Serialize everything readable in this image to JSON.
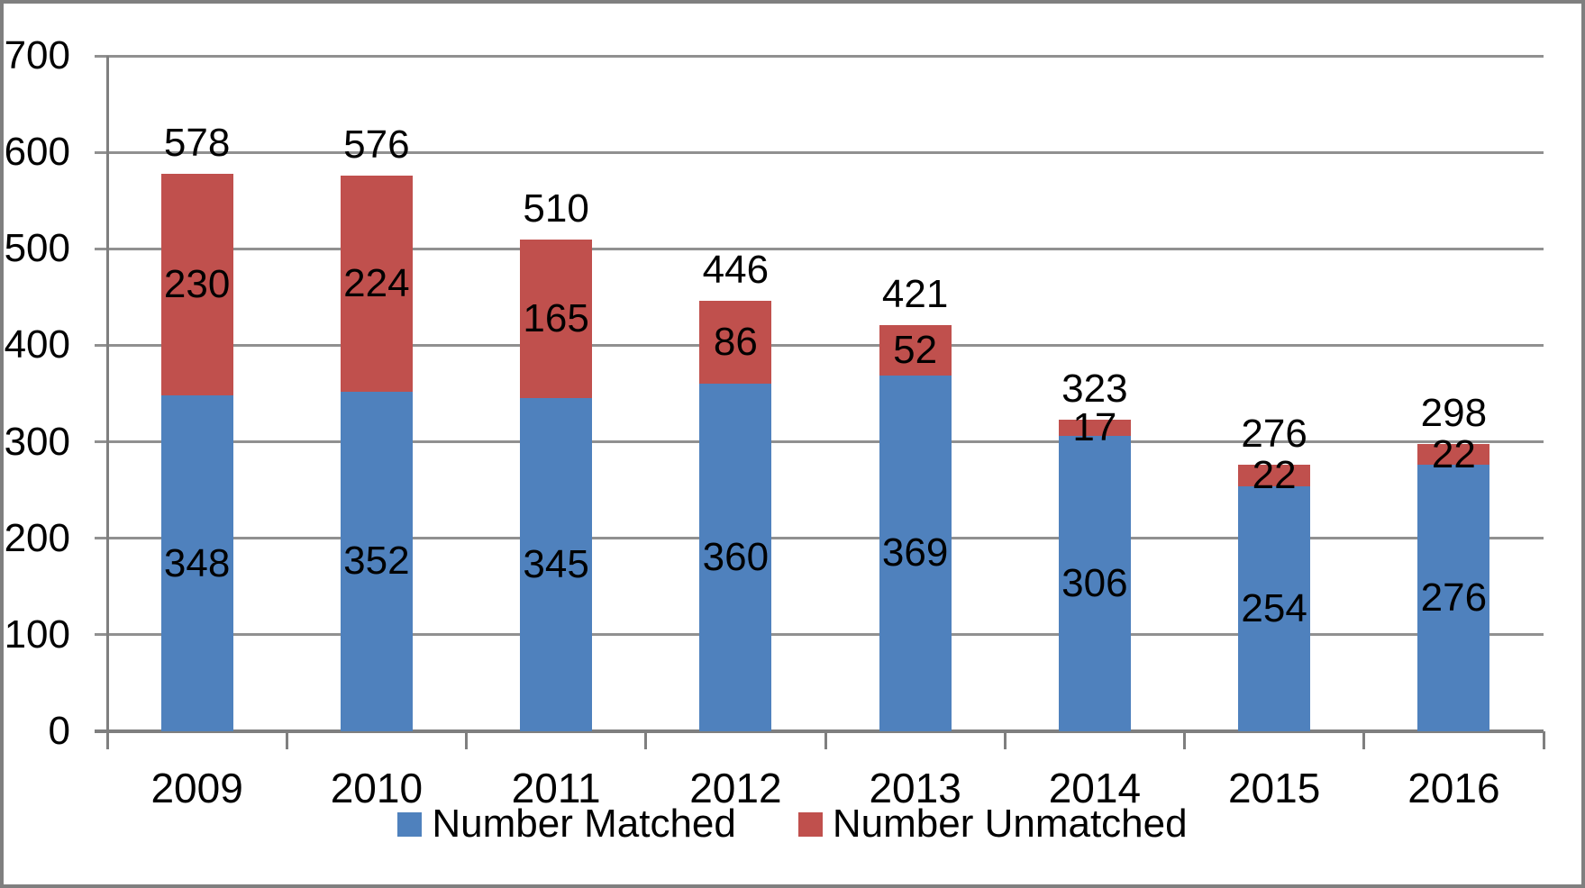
{
  "chart_data": {
    "type": "bar",
    "stacked": true,
    "title": "",
    "categories": [
      "2009",
      "2010",
      "2011",
      "2012",
      "2013",
      "2014",
      "2015",
      "2016"
    ],
    "series": [
      {
        "name": "Number Matched",
        "color": "#4f81bd",
        "values": [
          348,
          352,
          345,
          360,
          369,
          306,
          254,
          276
        ]
      },
      {
        "name": "Number Unmatched",
        "color": "#c0504d",
        "values": [
          230,
          224,
          165,
          86,
          52,
          17,
          22,
          22
        ]
      }
    ],
    "totals": [
      "578",
      "576",
      "510",
      "446",
      "421",
      "323",
      "276",
      "298"
    ],
    "segment_labels": {
      "matched": [
        "348",
        "352",
        "345",
        "360",
        "369",
        "306",
        "254",
        "276"
      ],
      "unmatched": [
        "230",
        "224",
        "165",
        "86",
        "52",
        "17",
        "22",
        "22"
      ]
    },
    "ylim": [
      0,
      700
    ],
    "ytick_interval": 100,
    "yticks": [
      "0",
      "100",
      "200",
      "300",
      "400",
      "500",
      "600",
      "700"
    ],
    "grid": true,
    "legend_position": "bottom",
    "colors": {
      "matched": "#4f81bd",
      "unmatched": "#c0504d",
      "gridline": "#909090",
      "axis": "#7f7f7f",
      "border": "#7f7f7f",
      "label_text": "#000000",
      "background": "#ffffff"
    }
  },
  "legend": {
    "items": [
      {
        "label": "Number Matched",
        "color": "#4f81bd"
      },
      {
        "label": "Number Unmatched",
        "color": "#c0504d"
      }
    ]
  }
}
